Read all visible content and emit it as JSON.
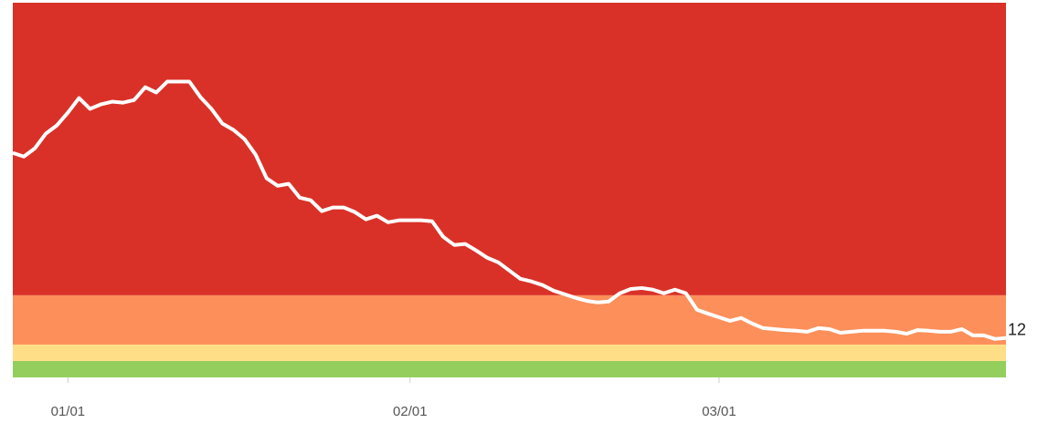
{
  "chart_data": {
    "type": "line",
    "x": [
      -5,
      -4,
      -3,
      -2,
      -1,
      0,
      1,
      2,
      3,
      4,
      5,
      6,
      7,
      8,
      9,
      10,
      11,
      12,
      13,
      14,
      15,
      16,
      17,
      18,
      19,
      20,
      21,
      22,
      23,
      24,
      25,
      26,
      27,
      28,
      29,
      30,
      31,
      32,
      33,
      34,
      35,
      36,
      37,
      38,
      39,
      40,
      41,
      42,
      43,
      44,
      45,
      46,
      47,
      48,
      49,
      50,
      51,
      52,
      53,
      54,
      55,
      56,
      57,
      58,
      59,
      60,
      61,
      62,
      63,
      64,
      65,
      66,
      67,
      68,
      69,
      70,
      71,
      72,
      73,
      74,
      75,
      76,
      77,
      78,
      79,
      80,
      81,
      82,
      83,
      84,
      85
    ],
    "values": [
      68.3,
      67.2,
      69.7,
      74.2,
      76.7,
      80.6,
      85,
      81.7,
      83.1,
      83.9,
      83.6,
      84.4,
      88.3,
      86.7,
      90,
      90,
      90,
      85.3,
      81.7,
      77.2,
      75.3,
      72.5,
      67.8,
      60.6,
      58.3,
      58.9,
      54.7,
      53.9,
      50.6,
      51.7,
      51.7,
      50.3,
      48.1,
      49.2,
      47.2,
      47.8,
      47.8,
      47.8,
      47.5,
      42.8,
      40.3,
      40.6,
      38.6,
      36.4,
      35,
      32.5,
      30,
      29.2,
      28.1,
      26.4,
      25.3,
      24.2,
      23.3,
      22.8,
      23.1,
      25.6,
      26.9,
      27.2,
      26.7,
      25.6,
      26.7,
      25.6,
      20.6,
      19.4,
      18.3,
      17.2,
      18.1,
      16.4,
      15,
      14.7,
      14.4,
      14.2,
      13.9,
      15,
      14.7,
      13.6,
      13.9,
      14.2,
      14.2,
      14.2,
      13.9,
      13.3,
      14.4,
      14.2,
      13.9,
      13.9,
      14.7,
      12.8,
      12.8,
      11.7,
      12
    ],
    "color": "#ffffff",
    "xlim": [
      -5,
      85
    ],
    "xticks": [
      {
        "value": 0,
        "label": "01/01"
      },
      {
        "value": 31,
        "label": "02/01"
      },
      {
        "value": 59,
        "label": "03/01"
      }
    ],
    "ylim": [
      0,
      114
    ],
    "bands": [
      {
        "from": 0,
        "to": 5,
        "color": "#94cf5d"
      },
      {
        "from": 5,
        "to": 10,
        "color": "#fedf88"
      },
      {
        "from": 10,
        "to": 25,
        "color": "#fd8f5a"
      },
      {
        "from": 25,
        "to": 114,
        "color": "#d93128"
      }
    ],
    "label_last": true
  }
}
